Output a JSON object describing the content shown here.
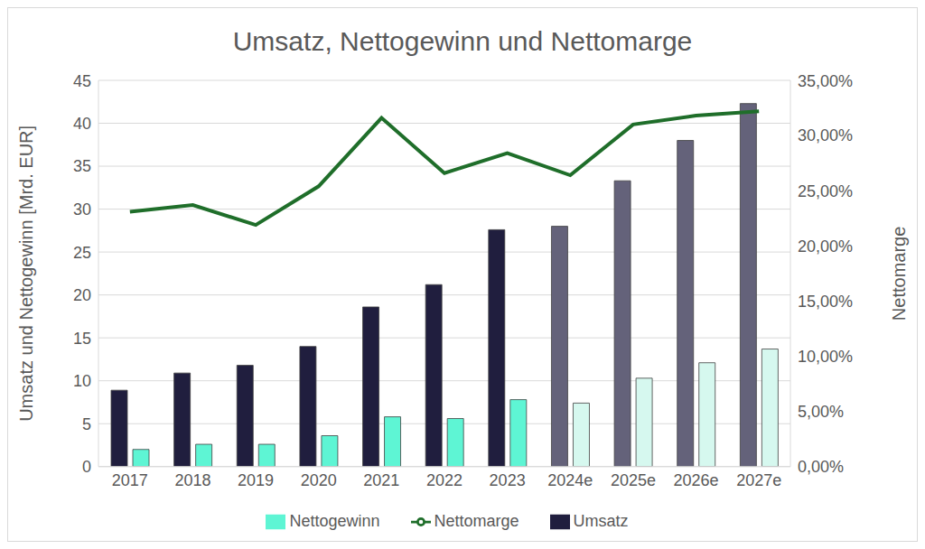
{
  "chart_data": {
    "type": "bar",
    "title": "Umsatz, Nettogewinn und Nettomarge",
    "y_label": "Umsatz und Nettogewinn [Mrd. EUR]",
    "y2_label": "Nettomarge",
    "categories": [
      "2017",
      "2018",
      "2019",
      "2020",
      "2021",
      "2022",
      "2023",
      "2024e",
      "2025e",
      "2026e",
      "2027e"
    ],
    "series": [
      {
        "name": "Umsatz",
        "type": "bar",
        "color": "#201e3e",
        "colors": [
          "#201e3e",
          "#201e3e",
          "#201e3e",
          "#201e3e",
          "#201e3e",
          "#201e3e",
          "#201e3e",
          "#64627a",
          "#64627a",
          "#64627a",
          "#64627a"
        ],
        "values": [
          8.9,
          10.9,
          11.8,
          14.0,
          18.6,
          21.2,
          27.6,
          28.0,
          33.3,
          38.0,
          42.3
        ]
      },
      {
        "name": "Nettogewinn",
        "type": "bar",
        "color": "#5ef5d4",
        "colors": [
          "#5ef5d4",
          "#5ef5d4",
          "#5ef5d4",
          "#5ef5d4",
          "#5ef5d4",
          "#5ef5d4",
          "#5ef5d4",
          "#d6f8ef",
          "#d6f8ef",
          "#d6f8ef",
          "#d6f8ef"
        ],
        "values": [
          2.0,
          2.6,
          2.6,
          3.6,
          5.8,
          5.6,
          7.8,
          7.4,
          10.3,
          12.1,
          13.7
        ]
      },
      {
        "name": "Nettomarge",
        "type": "line",
        "axis": "y2",
        "color": "#1f6e2a",
        "values": [
          23.1,
          23.7,
          21.9,
          25.4,
          31.6,
          26.6,
          28.4,
          26.4,
          31.0,
          31.8,
          32.2
        ]
      }
    ],
    "ylim": [
      0,
      45
    ],
    "yticks": [
      0,
      5,
      10,
      15,
      20,
      25,
      30,
      35,
      40,
      45
    ],
    "y2lim": [
      0,
      35
    ],
    "y2ticks": [
      {
        "value": 0,
        "label": "0,00%"
      },
      {
        "value": 5,
        "label": "5,00%"
      },
      {
        "value": 10,
        "label": "10,00%"
      },
      {
        "value": 15,
        "label": "15,00%"
      },
      {
        "value": 20,
        "label": "20,00%"
      },
      {
        "value": 25,
        "label": "25,00%"
      },
      {
        "value": 30,
        "label": "30,00%"
      },
      {
        "value": 35,
        "label": "35,00%"
      }
    ],
    "grid": true,
    "legend": "bottom"
  }
}
